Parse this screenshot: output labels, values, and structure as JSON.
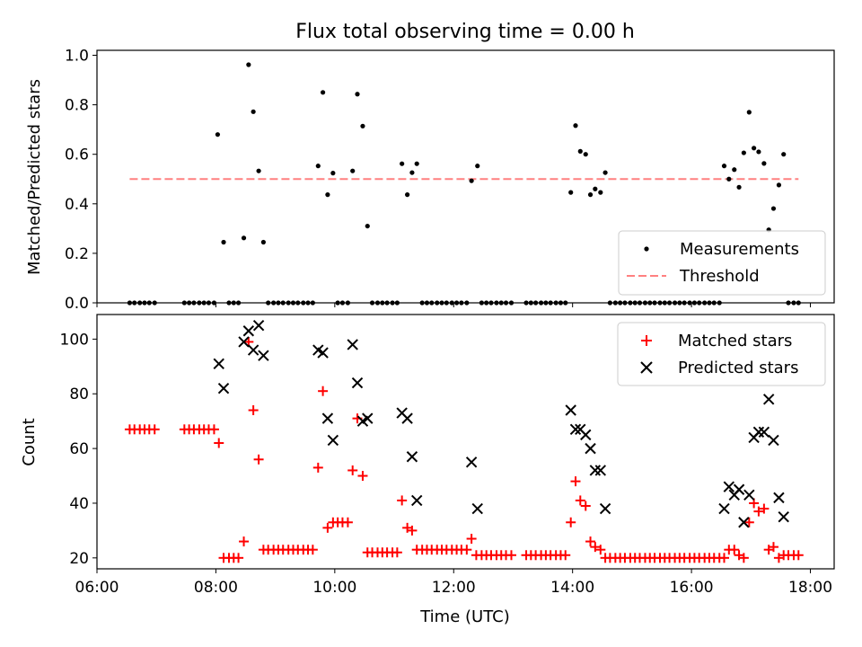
{
  "chart_data": [
    {
      "type": "scatter",
      "title": "Flux total observing time = 0.00 h",
      "xlabel": "",
      "ylabel": "Matched/Predicted stars",
      "xlim": [
        6.0,
        18.4
      ],
      "ylim": [
        0,
        1.02
      ],
      "xticks": [
        6,
        8,
        10,
        12,
        14,
        16,
        18
      ],
      "yticks": [
        0.0,
        0.2,
        0.4,
        0.6,
        0.8,
        1.0
      ],
      "ytick_labels": [
        "0.0",
        "0.2",
        "0.4",
        "0.6",
        "0.8",
        "1.0"
      ],
      "legend": {
        "position": "lower-right",
        "entries": [
          "Measurements",
          "Threshold"
        ]
      },
      "threshold": {
        "name": "Threshold",
        "y": 0.5,
        "x": [
          6.55,
          17.8
        ],
        "color": "#ff8080"
      },
      "series": [
        {
          "name": "Measurements",
          "marker": "dot",
          "color": "#000000",
          "x": [
            8.03,
            8.13,
            8.47,
            8.55,
            8.63,
            8.72,
            8.8,
            9.72,
            9.8,
            9.88,
            9.97,
            10.3,
            10.38,
            10.47,
            10.55,
            11.13,
            11.22,
            11.3,
            11.38,
            12.3,
            12.4,
            13.97,
            14.05,
            14.13,
            14.22,
            14.3,
            14.38,
            14.47,
            14.55,
            16.55,
            16.63,
            16.72,
            16.8,
            16.88,
            16.97,
            17.05,
            17.13,
            17.22,
            17.3,
            17.38,
            17.47,
            17.55
          ],
          "y": [
            0.68,
            0.245,
            0.262,
            0.962,
            0.772,
            0.533,
            0.245,
            0.553,
            0.85,
            0.437,
            0.524,
            0.533,
            0.843,
            0.714,
            0.31,
            0.562,
            0.437,
            0.526,
            0.562,
            0.493,
            0.553,
            0.446,
            0.716,
            0.612,
            0.6,
            0.437,
            0.46,
            0.446,
            0.526,
            0.553,
            0.5,
            0.538,
            0.467,
            0.606,
            0.77,
            0.625,
            0.61,
            0.563,
            0.295,
            0.381,
            0.476,
            0.6
          ]
        },
        {
          "name": "Measurements (zero)",
          "marker": "dot",
          "color": "#000000",
          "x": [
            6.55,
            6.63,
            6.72,
            6.8,
            6.88,
            6.97,
            7.47,
            7.55,
            7.63,
            7.72,
            7.8,
            7.88,
            7.97,
            8.22,
            8.3,
            8.38,
            8.88,
            8.97,
            9.05,
            9.13,
            9.22,
            9.3,
            9.38,
            9.47,
            9.55,
            9.63,
            10.05,
            10.13,
            10.22,
            10.63,
            10.72,
            10.8,
            10.88,
            10.97,
            11.05,
            11.47,
            11.55,
            11.63,
            11.72,
            11.8,
            11.88,
            11.97,
            12.05,
            12.13,
            12.22,
            12.47,
            12.55,
            12.63,
            12.72,
            12.8,
            12.88,
            12.97,
            13.22,
            13.3,
            13.38,
            13.47,
            13.55,
            13.63,
            13.72,
            13.8,
            13.88,
            14.63,
            14.72,
            14.8,
            14.88,
            14.97,
            15.05,
            15.13,
            15.22,
            15.3,
            15.38,
            15.47,
            15.55,
            15.63,
            15.72,
            15.8,
            15.88,
            15.97,
            16.05,
            16.13,
            16.22,
            16.3,
            16.38,
            16.47,
            17.63,
            17.72,
            17.8
          ],
          "y_value": 0.0
        }
      ]
    },
    {
      "type": "scatter",
      "title": "",
      "xlabel": "Time (UTC)",
      "ylabel": "Count",
      "xlim": [
        6.0,
        18.4
      ],
      "ylim": [
        16,
        109
      ],
      "xticks": [
        6,
        8,
        10,
        12,
        14,
        16,
        18
      ],
      "xtick_labels": [
        "06:00",
        "08:00",
        "10:00",
        "12:00",
        "14:00",
        "16:00",
        "18:00"
      ],
      "yticks": [
        20,
        40,
        60,
        80,
        100
      ],
      "ytick_labels": [
        "20",
        "40",
        "60",
        "80",
        "100"
      ],
      "legend": {
        "position": "top-right",
        "entries": [
          "Matched stars",
          "Predicted stars"
        ]
      },
      "series": [
        {
          "name": "Matched stars",
          "marker": "plus",
          "color": "#ff0000",
          "x": [
            6.55,
            6.63,
            6.72,
            6.8,
            6.88,
            6.97,
            7.47,
            7.55,
            7.63,
            7.72,
            7.8,
            7.88,
            7.97,
            8.05,
            8.13,
            8.22,
            8.3,
            8.38,
            8.47,
            8.55,
            8.63,
            8.72,
            8.8,
            8.88,
            8.97,
            9.05,
            9.13,
            9.22,
            9.3,
            9.38,
            9.47,
            9.55,
            9.63,
            9.72,
            9.8,
            9.88,
            9.97,
            10.05,
            10.13,
            10.22,
            10.3,
            10.38,
            10.47,
            10.55,
            10.63,
            10.72,
            10.8,
            10.88,
            10.97,
            11.05,
            11.13,
            11.22,
            11.3,
            11.38,
            11.47,
            11.55,
            11.63,
            11.72,
            11.8,
            11.88,
            11.97,
            12.05,
            12.13,
            12.22,
            12.3,
            12.38,
            12.47,
            12.55,
            12.63,
            12.72,
            12.8,
            12.88,
            12.97,
            13.22,
            13.3,
            13.38,
            13.47,
            13.55,
            13.63,
            13.72,
            13.8,
            13.88,
            13.97,
            14.05,
            14.13,
            14.22,
            14.3,
            14.38,
            14.47,
            14.55,
            14.63,
            14.72,
            14.8,
            14.88,
            14.97,
            15.05,
            15.13,
            15.22,
            15.3,
            15.38,
            15.47,
            15.55,
            15.63,
            15.72,
            15.8,
            15.88,
            15.97,
            16.05,
            16.13,
            16.22,
            16.3,
            16.38,
            16.47,
            16.55,
            16.63,
            16.72,
            16.8,
            16.88,
            16.97,
            17.05,
            17.13,
            17.22,
            17.3,
            17.38,
            17.47,
            17.55,
            17.63,
            17.72,
            17.8
          ],
          "y": [
            67,
            67,
            67,
            67,
            67,
            67,
            67,
            67,
            67,
            67,
            67,
            67,
            67,
            62,
            20,
            20,
            20,
            20,
            26,
            99,
            74,
            56,
            23,
            23,
            23,
            23,
            23,
            23,
            23,
            23,
            23,
            23,
            23,
            53,
            81,
            31,
            33,
            33,
            33,
            33,
            52,
            71,
            50,
            22,
            22,
            22,
            22,
            22,
            22,
            22,
            41,
            31,
            30,
            23,
            23,
            23,
            23,
            23,
            23,
            23,
            23,
            23,
            23,
            23,
            27,
            21,
            21,
            21,
            21,
            21,
            21,
            21,
            21,
            21,
            21,
            21,
            21,
            21,
            21,
            21,
            21,
            21,
            33,
            48,
            41,
            39,
            26,
            24,
            23,
            20,
            20,
            20,
            20,
            20,
            20,
            20,
            20,
            20,
            20,
            20,
            20,
            20,
            20,
            20,
            20,
            20,
            20,
            20,
            20,
            20,
            20,
            20,
            20,
            20,
            23,
            23,
            21,
            20,
            33,
            40,
            37,
            38,
            23,
            24,
            20,
            21,
            21,
            21,
            21
          ]
        },
        {
          "name": "Predicted stars",
          "marker": "x",
          "color": "#000000",
          "x": [
            8.05,
            8.13,
            8.47,
            8.55,
            8.63,
            8.72,
            8.8,
            9.72,
            9.8,
            9.88,
            9.97,
            10.3,
            10.38,
            10.47,
            10.55,
            11.13,
            11.22,
            11.3,
            11.38,
            12.3,
            12.4,
            13.97,
            14.05,
            14.13,
            14.22,
            14.3,
            14.38,
            14.47,
            14.55,
            16.55,
            16.63,
            16.72,
            16.8,
            16.88,
            16.97,
            17.05,
            17.13,
            17.22,
            17.3,
            17.38,
            17.47,
            17.55
          ],
          "y": [
            91,
            82,
            99,
            103,
            96,
            105,
            94,
            96,
            95,
            71,
            63,
            98,
            84,
            70,
            71,
            73,
            71,
            57,
            41,
            55,
            38,
            74,
            67,
            67,
            65,
            60,
            52,
            52,
            38,
            38,
            46,
            43,
            45,
            33,
            43,
            64,
            66,
            66,
            78,
            63,
            42,
            35
          ]
        }
      ]
    }
  ]
}
